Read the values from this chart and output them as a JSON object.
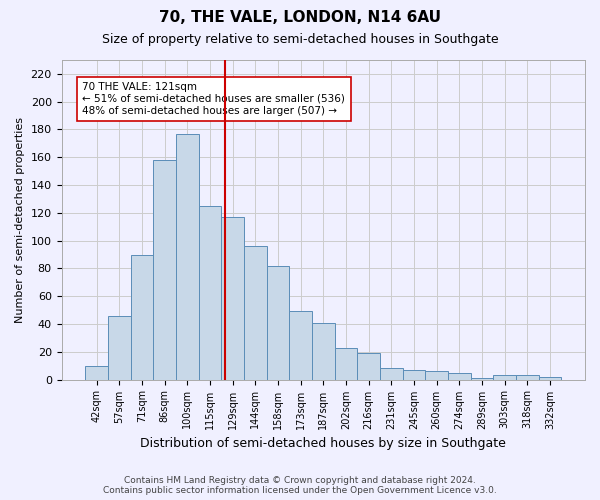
{
  "title": "70, THE VALE, LONDON, N14 6AU",
  "subtitle": "Size of property relative to semi-detached houses in Southgate",
  "xlabel": "Distribution of semi-detached houses by size in Southgate",
  "ylabel": "Number of semi-detached properties",
  "footer_line1": "Contains HM Land Registry data © Crown copyright and database right 2024.",
  "footer_line2": "Contains public sector information licensed under the Open Government Licence v3.0.",
  "bin_labels": [
    "42sqm",
    "57sqm",
    "71sqm",
    "86sqm",
    "100sqm",
    "115sqm",
    "129sqm",
    "144sqm",
    "158sqm",
    "173sqm",
    "187sqm",
    "202sqm",
    "216sqm",
    "231sqm",
    "245sqm",
    "260sqm",
    "274sqm",
    "289sqm",
    "303sqm",
    "318sqm",
    "332sqm"
  ],
  "bar_values": [
    10,
    46,
    90,
    158,
    177,
    125,
    117,
    96,
    82,
    49,
    41,
    23,
    19,
    8,
    7,
    6,
    5,
    1,
    3,
    3,
    2
  ],
  "bar_color": "#c8d8e8",
  "bar_edge_color": "#5b8db8",
  "grid_color": "#cccccc",
  "vline_x": 5.65,
  "vline_color": "#cc0000",
  "annotation_text": "70 THE VALE: 121sqm\n← 51% of semi-detached houses are smaller (536)\n48% of semi-detached houses are larger (507) →",
  "annotation_box_color": "white",
  "annotation_box_edge_color": "#cc0000",
  "ylim": [
    0,
    230
  ],
  "yticks": [
    0,
    20,
    40,
    60,
    80,
    100,
    120,
    140,
    160,
    180,
    200,
    220
  ],
  "background_color": "#f0f0ff"
}
